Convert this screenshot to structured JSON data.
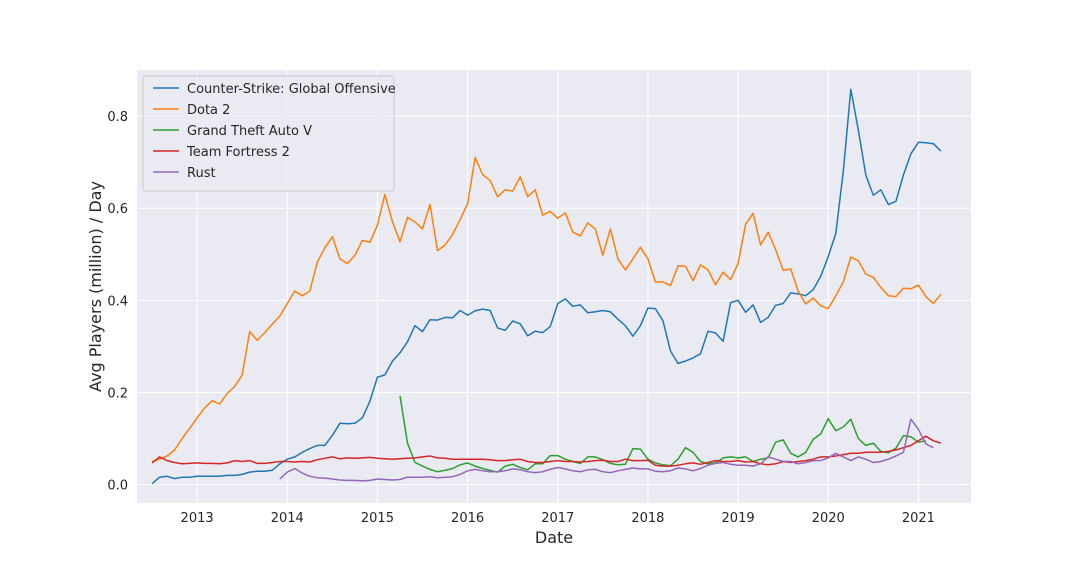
{
  "chart_data": {
    "type": "line",
    "title": "",
    "xlabel": "Date",
    "ylabel": "Avg Players (million) / Day",
    "xlim": [
      "2012-05-01",
      "2021-08-01"
    ],
    "ylim": [
      -0.04,
      0.9
    ],
    "x_ticks": [
      "2013",
      "2014",
      "2015",
      "2016",
      "2017",
      "2018",
      "2019",
      "2020",
      "2021"
    ],
    "y_ticks": [
      "0.0",
      "0.2",
      "0.4",
      "0.6",
      "0.8"
    ],
    "y_tick_values": [
      0.0,
      0.2,
      0.4,
      0.6,
      0.8
    ],
    "grid": true,
    "legend_position": "top-left",
    "colors": {
      "background": "#EAEAF2",
      "grid": "#FFFFFF"
    },
    "series": [
      {
        "name": "Counter-Strike: Global Offensive",
        "color": "#1f77b4",
        "start": "2012-07",
        "values": [
          0.002,
          0.016,
          0.018,
          0.013,
          0.016,
          0.016,
          0.018,
          0.018,
          0.018,
          0.018,
          0.02,
          0.02,
          0.022,
          0.027,
          0.029,
          0.029,
          0.031,
          0.045,
          0.055,
          0.06,
          0.07,
          0.078,
          0.085,
          0.085,
          0.107,
          0.133,
          0.132,
          0.133,
          0.145,
          0.181,
          0.233,
          0.238,
          0.268,
          0.286,
          0.31,
          0.345,
          0.332,
          0.358,
          0.357,
          0.363,
          0.362,
          0.378,
          0.368,
          0.377,
          0.381,
          0.378,
          0.34,
          0.335,
          0.355,
          0.349,
          0.323,
          0.333,
          0.33,
          0.343,
          0.393,
          0.403,
          0.387,
          0.39,
          0.373,
          0.375,
          0.378,
          0.375,
          0.359,
          0.345,
          0.322,
          0.345,
          0.383,
          0.382,
          0.356,
          0.29,
          0.263,
          0.268,
          0.275,
          0.284,
          0.333,
          0.329,
          0.311,
          0.395,
          0.4,
          0.374,
          0.39,
          0.352,
          0.363,
          0.389,
          0.393,
          0.416,
          0.414,
          0.41,
          0.423,
          0.452,
          0.495,
          0.545,
          0.68,
          0.858,
          0.77,
          0.672,
          0.628,
          0.64,
          0.608,
          0.615,
          0.672,
          0.718,
          0.743,
          0.742,
          0.74,
          0.724
        ]
      },
      {
        "name": "Dota 2",
        "color": "#ff7f0e",
        "start": "2012-07",
        "values": [
          0.05,
          0.055,
          0.062,
          0.075,
          0.1,
          0.122,
          0.145,
          0.166,
          0.182,
          0.175,
          0.198,
          0.213,
          0.238,
          0.332,
          0.313,
          0.33,
          0.348,
          0.366,
          0.393,
          0.42,
          0.41,
          0.42,
          0.483,
          0.514,
          0.538,
          0.49,
          0.48,
          0.498,
          0.53,
          0.526,
          0.563,
          0.63,
          0.57,
          0.527,
          0.58,
          0.57,
          0.555,
          0.608,
          0.508,
          0.52,
          0.543,
          0.575,
          0.61,
          0.71,
          0.673,
          0.66,
          0.625,
          0.64,
          0.637,
          0.668,
          0.625,
          0.64,
          0.585,
          0.593,
          0.578,
          0.59,
          0.548,
          0.54,
          0.568,
          0.555,
          0.498,
          0.555,
          0.49,
          0.466,
          0.49,
          0.515,
          0.49,
          0.44,
          0.44,
          0.432,
          0.475,
          0.474,
          0.443,
          0.477,
          0.466,
          0.434,
          0.461,
          0.445,
          0.48,
          0.565,
          0.589,
          0.52,
          0.548,
          0.51,
          0.465,
          0.468,
          0.42,
          0.392,
          0.405,
          0.388,
          0.382,
          0.41,
          0.44,
          0.494,
          0.486,
          0.457,
          0.45,
          0.428,
          0.41,
          0.408,
          0.426,
          0.425,
          0.433,
          0.408,
          0.393,
          0.413
        ]
      },
      {
        "name": "Grand Theft Auto V",
        "color": "#2ca02c",
        "start": "2015-04",
        "values": [
          0.193,
          0.09,
          0.048,
          0.04,
          0.033,
          0.028,
          0.031,
          0.035,
          0.043,
          0.047,
          0.04,
          0.035,
          0.031,
          0.027,
          0.04,
          0.044,
          0.037,
          0.032,
          0.045,
          0.045,
          0.063,
          0.063,
          0.055,
          0.05,
          0.046,
          0.06,
          0.06,
          0.054,
          0.046,
          0.043,
          0.044,
          0.078,
          0.077,
          0.055,
          0.047,
          0.043,
          0.041,
          0.055,
          0.08,
          0.07,
          0.05,
          0.045,
          0.047,
          0.058,
          0.06,
          0.058,
          0.06,
          0.05,
          0.055,
          0.058,
          0.092,
          0.097,
          0.068,
          0.06,
          0.07,
          0.098,
          0.11,
          0.143,
          0.117,
          0.125,
          0.142,
          0.1,
          0.085,
          0.09,
          0.072,
          0.069,
          0.079,
          0.106,
          0.104,
          0.092,
          0.095
        ]
      },
      {
        "name": "Team Fortress 2",
        "color": "#d62728",
        "start": "2012-07",
        "values": [
          0.047,
          0.06,
          0.052,
          0.048,
          0.045,
          0.046,
          0.047,
          0.046,
          0.046,
          0.045,
          0.047,
          0.052,
          0.05,
          0.052,
          0.046,
          0.046,
          0.048,
          0.05,
          0.05,
          0.049,
          0.05,
          0.049,
          0.054,
          0.057,
          0.06,
          0.056,
          0.058,
          0.057,
          0.058,
          0.059,
          0.057,
          0.056,
          0.055,
          0.056,
          0.057,
          0.058,
          0.06,
          0.062,
          0.058,
          0.057,
          0.055,
          0.055,
          0.055,
          0.055,
          0.055,
          0.054,
          0.052,
          0.052,
          0.054,
          0.055,
          0.05,
          0.048,
          0.048,
          0.05,
          0.052,
          0.05,
          0.05,
          0.049,
          0.05,
          0.052,
          0.053,
          0.05,
          0.05,
          0.055,
          0.052,
          0.052,
          0.053,
          0.042,
          0.04,
          0.04,
          0.042,
          0.045,
          0.047,
          0.044,
          0.048,
          0.052,
          0.05,
          0.05,
          0.052,
          0.049,
          0.05,
          0.045,
          0.043,
          0.045,
          0.05,
          0.048,
          0.05,
          0.052,
          0.055,
          0.06,
          0.06,
          0.062,
          0.065,
          0.068,
          0.068,
          0.07,
          0.07,
          0.07,
          0.072,
          0.075,
          0.08,
          0.085,
          0.095,
          0.105,
          0.095,
          0.09
        ]
      },
      {
        "name": "Rust",
        "color": "#9467bd",
        "start": "2013-12",
        "values": [
          0.012,
          0.027,
          0.035,
          0.025,
          0.018,
          0.015,
          0.014,
          0.012,
          0.01,
          0.009,
          0.009,
          0.008,
          0.009,
          0.012,
          0.011,
          0.01,
          0.011,
          0.016,
          0.016,
          0.016,
          0.017,
          0.015,
          0.016,
          0.017,
          0.022,
          0.03,
          0.033,
          0.03,
          0.028,
          0.028,
          0.03,
          0.034,
          0.032,
          0.028,
          0.026,
          0.028,
          0.033,
          0.037,
          0.034,
          0.03,
          0.028,
          0.032,
          0.033,
          0.028,
          0.026,
          0.03,
          0.033,
          0.036,
          0.034,
          0.034,
          0.029,
          0.028,
          0.03,
          0.036,
          0.034,
          0.03,
          0.035,
          0.042,
          0.046,
          0.048,
          0.044,
          0.042,
          0.042,
          0.04,
          0.045,
          0.06,
          0.055,
          0.05,
          0.05,
          0.045,
          0.048,
          0.052,
          0.052,
          0.058,
          0.068,
          0.06,
          0.052,
          0.06,
          0.055,
          0.048,
          0.05,
          0.055,
          0.062,
          0.07,
          0.142,
          0.12,
          0.088,
          0.08
        ]
      }
    ]
  }
}
